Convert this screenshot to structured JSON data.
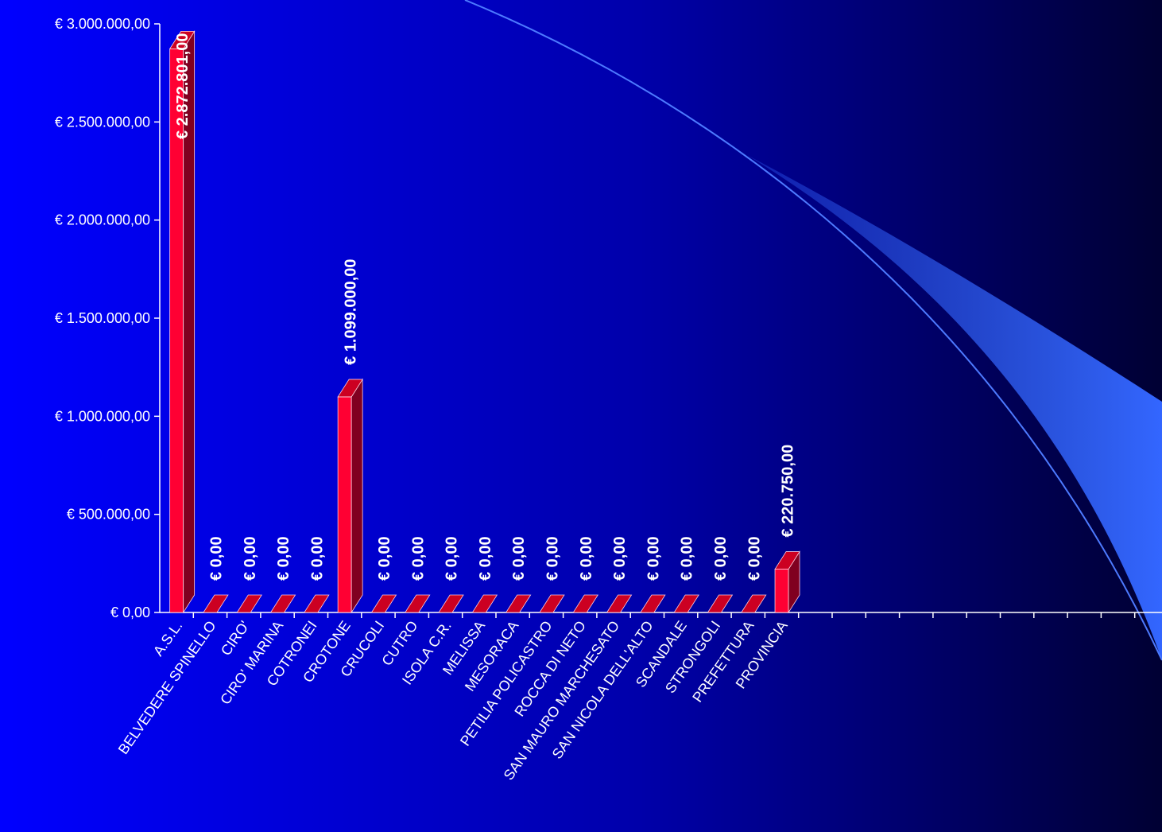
{
  "chart_data": {
    "type": "bar3d",
    "categories": [
      "A.S.L.",
      "BELVEDERE SPINELLO",
      "CIRO'",
      "CIRO' MARINA",
      "COTRONEI",
      "CROTONE",
      "CRUCOLI",
      "CUTRO",
      "ISOLA C.R.",
      "MELISSA",
      "MESORACA",
      "PETILIA POLICASTRO",
      "ROCCA DI NETO",
      "SAN MAURO MARCHESATO",
      "SAN NICOLA DELL'ALTO",
      "SCANDALE",
      "STRONGOLI",
      "PREFETTURA",
      "PROVINCIA",
      null,
      null,
      null,
      null,
      null,
      null,
      null,
      null,
      null,
      null,
      null
    ],
    "values": [
      2872801,
      0,
      0,
      0,
      0,
      1099000,
      0,
      0,
      0,
      0,
      0,
      0,
      0,
      0,
      0,
      0,
      0,
      0,
      220750,
      null,
      null,
      null,
      null,
      null,
      null,
      null,
      null,
      null,
      null,
      null
    ],
    "value_labels": [
      "€ 2.872.801,00",
      "€ 0,00",
      "€ 0,00",
      "€ 0,00",
      "€ 0,00",
      "€ 1.099.000,00",
      "€ 0,00",
      "€ 0,00",
      "€ 0,00",
      "€ 0,00",
      "€ 0,00",
      "€ 0,00",
      "€ 0,00",
      "€ 0,00",
      "€ 0,00",
      "€ 0,00",
      "€ 0,00",
      "€ 0,00",
      "€ 220.750,00",
      null,
      null,
      null,
      null,
      null,
      null,
      null,
      null,
      null,
      null,
      null
    ],
    "color": "#ff0033",
    "ylim": [
      0,
      3000000
    ],
    "yticks": [
      {
        "value": 0,
        "label": "€ 0,00"
      },
      {
        "value": 500000,
        "label": "€ 500.000,00"
      },
      {
        "value": 1000000,
        "label": "€ 1.000.000,00"
      },
      {
        "value": 1500000,
        "label": "€ 1.500.000,00"
      },
      {
        "value": 2000000,
        "label": "€ 2.000.000,00"
      },
      {
        "value": 2500000,
        "label": "€ 2.500.000,00"
      },
      {
        "value": 3000000,
        "label": "€ 3.000.000,00"
      }
    ]
  }
}
